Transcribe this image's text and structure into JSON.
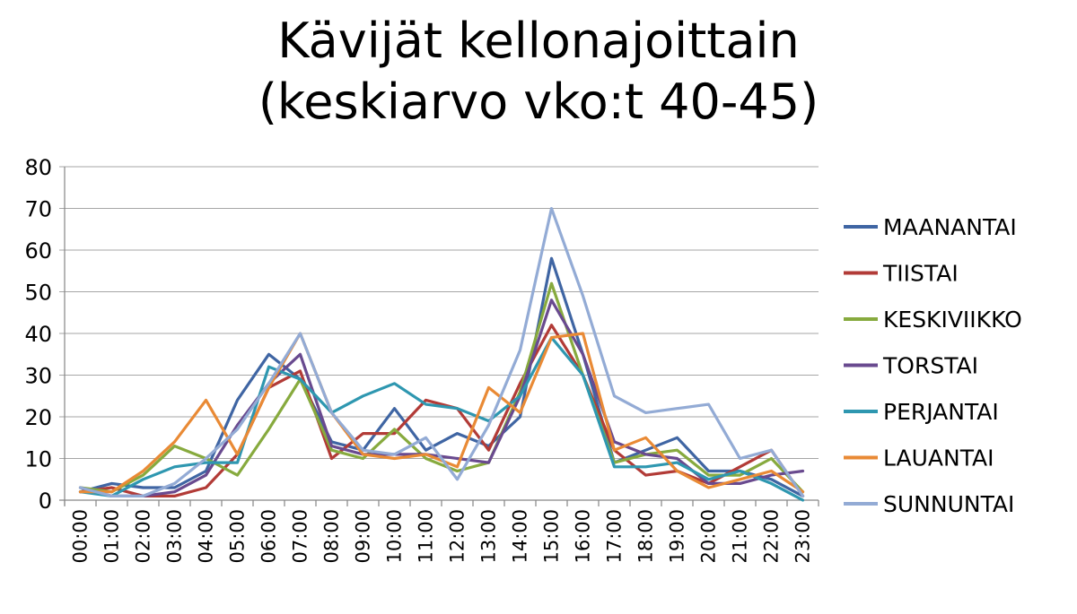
{
  "chart_data": {
    "type": "line",
    "title": [
      "Kävijät kellonajoittain",
      "(keskiarvo vko:t 40-45)"
    ],
    "xlabel": "",
    "ylabel": "",
    "ylim": [
      0,
      80
    ],
    "yticks": [
      0,
      10,
      20,
      30,
      40,
      50,
      60,
      70,
      80
    ],
    "grid": true,
    "legend": "right",
    "categories": [
      "00:00",
      "01:00",
      "02:00",
      "03:00",
      "04:00",
      "05:00",
      "06:00",
      "07:00",
      "08:00",
      "09:00",
      "10:00",
      "11:00",
      "12:00",
      "13:00",
      "14:00",
      "15:00",
      "16:00",
      "17:00",
      "18:00",
      "19:00",
      "20:00",
      "21:00",
      "22:00",
      "23:00"
    ],
    "series": [
      {
        "name": "MAANANTAI",
        "color": "#3f65a3",
        "values": [
          2,
          4,
          3,
          3,
          7,
          24,
          35,
          29,
          14,
          12,
          22,
          12,
          16,
          13,
          20,
          58,
          35,
          9,
          12,
          15,
          7,
          7,
          5,
          1
        ]
      },
      {
        "name": "TIISTAI",
        "color": "#b23b37",
        "values": [
          2,
          3,
          1,
          1,
          3,
          11,
          27,
          31,
          10,
          16,
          16,
          24,
          22,
          12,
          28,
          42,
          30,
          12,
          6,
          7,
          4,
          8,
          12,
          1
        ]
      },
      {
        "name": "KESKIVIIKKO",
        "color": "#87aa3e",
        "values": [
          3,
          2,
          6,
          13,
          10,
          6,
          17,
          29,
          12,
          10,
          17,
          10,
          7,
          9,
          26,
          52,
          30,
          9,
          11,
          12,
          6,
          6,
          10,
          2
        ]
      },
      {
        "name": "TORSTAI",
        "color": "#694a8f",
        "values": [
          3,
          1,
          1,
          2,
          6,
          18,
          28,
          35,
          13,
          11,
          11,
          11,
          10,
          9,
          25,
          48,
          35,
          14,
          11,
          10,
          4,
          4,
          6,
          7
        ]
      },
      {
        "name": "PERJANTAI",
        "color": "#2e97b0",
        "values": [
          2,
          1,
          5,
          8,
          9,
          9,
          32,
          29,
          21,
          25,
          28,
          23,
          22,
          19,
          25,
          39,
          30,
          8,
          8,
          9,
          5,
          7,
          4,
          0
        ]
      },
      {
        "name": "LAUANTAI",
        "color": "#e98a35",
        "values": [
          2,
          2,
          7,
          14,
          24,
          11,
          27,
          40,
          21,
          11,
          10,
          11,
          8,
          27,
          21,
          39,
          40,
          12,
          15,
          7,
          3,
          5,
          7,
          2
        ]
      },
      {
        "name": "SUNNUNTAI",
        "color": "#93abd5",
        "values": [
          3,
          1,
          1,
          4,
          10,
          17,
          28,
          40,
          21,
          12,
          11,
          15,
          5,
          18,
          36,
          70,
          49,
          25,
          21,
          22,
          23,
          10,
          12,
          1
        ]
      }
    ]
  }
}
